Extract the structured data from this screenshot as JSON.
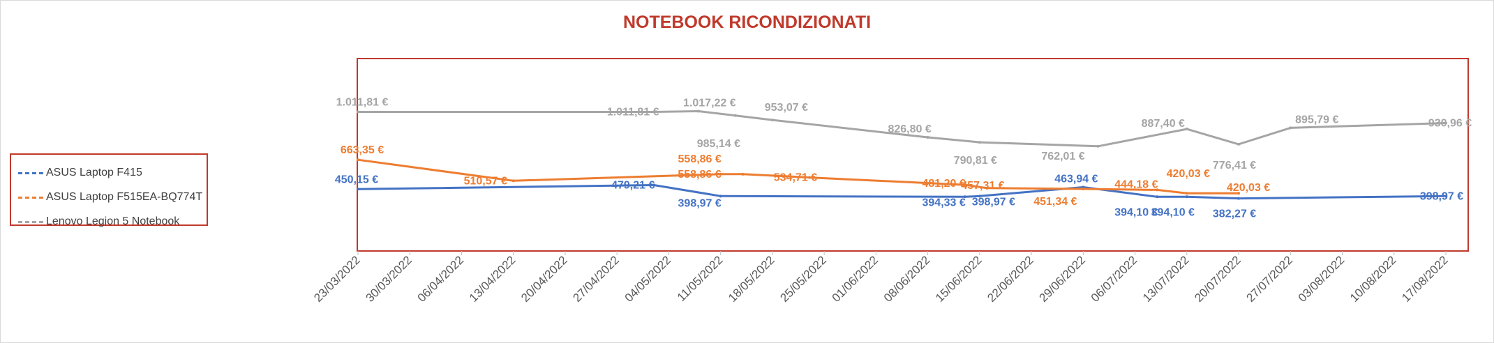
{
  "chart_data": {
    "type": "line",
    "title": "NOTEBOOK RICONDIZIONATI",
    "x_tick_labels": [
      "23/03/2022",
      "30/03/2022",
      "06/04/2022",
      "13/04/2022",
      "20/04/2022",
      "27/04/2022",
      "04/05/2022",
      "11/05/2022",
      "18/05/2022",
      "25/05/2022",
      "01/06/2022",
      "08/06/2022",
      "15/06/2022",
      "22/06/2022",
      "29/06/2022",
      "06/07/2022",
      "13/07/2022",
      "20/07/2022",
      "27/07/2022",
      "03/08/2022",
      "10/08/2022",
      "17/08/2022"
    ],
    "x_range": [
      "2022-03-23",
      "2022-08-17"
    ],
    "ylim": [
      0,
      1400
    ],
    "grid": false,
    "legend_position": "left",
    "series": [
      {
        "name": "ASUS Laptop F415",
        "color": "#4472c4",
        "points": [
          {
            "x": "2022-03-23",
            "y": 450.15,
            "label": "450,15 €"
          },
          {
            "x": "2022-05-02",
            "y": 479.21,
            "label": "479,21 €"
          },
          {
            "x": "2022-05-11",
            "y": 398.97,
            "label": "398,97 €"
          },
          {
            "x": "2022-06-13",
            "y": 394.33,
            "label": "394,33 €"
          },
          {
            "x": "2022-06-15",
            "y": 398.97,
            "label": "398,97 €"
          },
          {
            "x": "2022-06-29",
            "y": 463.94,
            "label": "463,94 €"
          },
          {
            "x": "2022-07-09",
            "y": 394.1,
            "label": "394,10 €"
          },
          {
            "x": "2022-07-13",
            "y": 394.1,
            "label": "394,10 €"
          },
          {
            "x": "2022-07-20",
            "y": 382.27,
            "label": "382,27 €"
          },
          {
            "x": "2022-08-17",
            "y": 398.97,
            "label": "398,97 €"
          }
        ]
      },
      {
        "name": "ASUS Laptop F515EA-BQ774T",
        "color": "#ed7d31",
        "points": [
          {
            "x": "2022-03-23",
            "y": 663.35,
            "label": "663,35 €"
          },
          {
            "x": "2022-04-13",
            "y": 510.57,
            "label": "510,57 €"
          },
          {
            "x": "2022-05-11",
            "y": 558.86,
            "label": "558,86 €"
          },
          {
            "x": "2022-05-14",
            "y": 558.86,
            "label": "558,86 €"
          },
          {
            "x": "2022-05-23",
            "y": 534.71,
            "label": "534,71 €"
          },
          {
            "x": "2022-06-13",
            "y": 481.2,
            "label": "481,20 €"
          },
          {
            "x": "2022-06-16",
            "y": 457.31,
            "label": "457,31 €"
          },
          {
            "x": "2022-06-29",
            "y": 451.34,
            "label": "451,34 €"
          },
          {
            "x": "2022-07-09",
            "y": 444.18,
            "label": "444,18 €"
          },
          {
            "x": "2022-07-13",
            "y": 420.03,
            "label": "420,03 €"
          },
          {
            "x": "2022-07-20",
            "y": 420.03,
            "label": "420,03 €"
          }
        ]
      },
      {
        "name": "Lenovo Legion 5 Notebook",
        "color": "#a5a5a5",
        "points": [
          {
            "x": "2022-03-23",
            "y": 1011.81,
            "label": "1.011,81 €"
          },
          {
            "x": "2022-05-02",
            "y": 1011.81,
            "label": "1.011,81 €"
          },
          {
            "x": "2022-05-08",
            "y": 1017.22,
            "label": "1.017,22 €"
          },
          {
            "x": "2022-05-13",
            "y": 985.14,
            "label": "985,14 €"
          },
          {
            "x": "2022-05-18",
            "y": 953.07,
            "label": "953,07 €"
          },
          {
            "x": "2022-06-08",
            "y": 826.8,
            "label": "826,80 €"
          },
          {
            "x": "2022-06-15",
            "y": 790.81,
            "label": "790,81 €"
          },
          {
            "x": "2022-07-01",
            "y": 762.01,
            "label": "762,01 €"
          },
          {
            "x": "2022-07-13",
            "y": 887.4,
            "label": "887,40 €"
          },
          {
            "x": "2022-07-20",
            "y": 776.41,
            "label": "776,41 €"
          },
          {
            "x": "2022-07-27",
            "y": 895.79,
            "label": "895,79 €"
          },
          {
            "x": "2022-08-17",
            "y": 930.96,
            "label": "930,96 €"
          }
        ]
      }
    ]
  }
}
